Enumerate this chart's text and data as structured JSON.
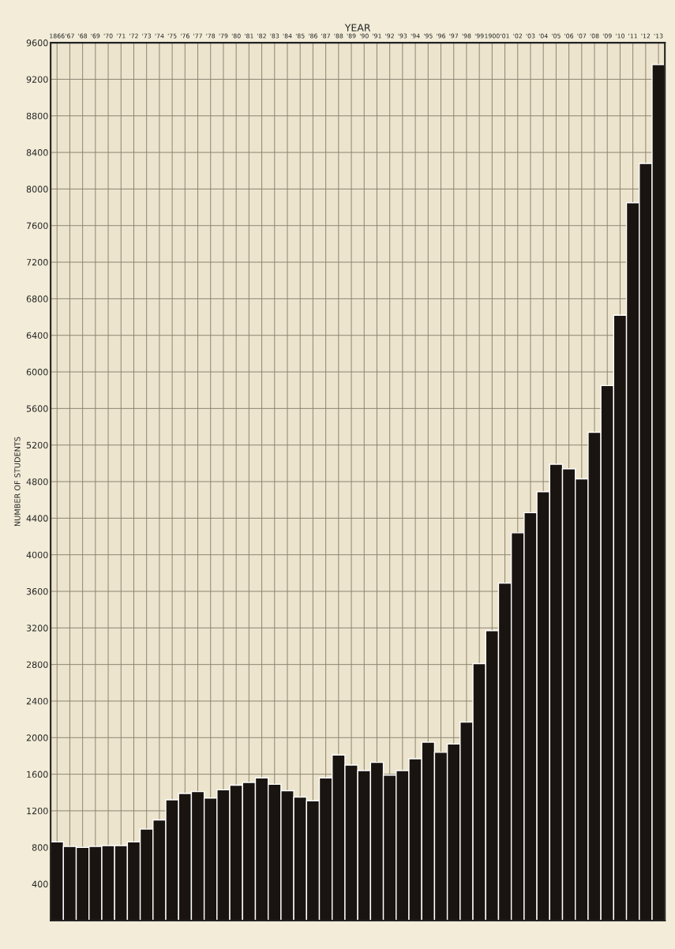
{
  "chart_data": {
    "type": "bar",
    "xlabel": "YEAR",
    "ylabel": "NUMBER OF STUDENTS",
    "categories": [
      "1866",
      "'67",
      "'68",
      "'69",
      "'70",
      "'71",
      "'72",
      "'73",
      "'74",
      "'75",
      "'76",
      "'77",
      "'78",
      "'79",
      "'80",
      "'81",
      "'82",
      "'83",
      "'84",
      "'85",
      "'86",
      "'87",
      "'88",
      "'89",
      "'90",
      "'91",
      "'92",
      "'93",
      "'94",
      "'95",
      "'96",
      "'97",
      "'98",
      "'99",
      "1900",
      "'01",
      "'02",
      "'03",
      "'04",
      "'05",
      "'06",
      "'07",
      "'08",
      "'09",
      "'10",
      "'11",
      "'12",
      "'13"
    ],
    "values": [
      860,
      810,
      800,
      810,
      820,
      820,
      860,
      1000,
      1100,
      1320,
      1390,
      1410,
      1340,
      1430,
      1480,
      1510,
      1560,
      1490,
      1420,
      1350,
      1310,
      1560,
      1810,
      1700,
      1640,
      1730,
      1590,
      1640,
      1770,
      1950,
      1840,
      1930,
      2170,
      2810,
      3170,
      3690,
      4240,
      4460,
      4690,
      4990,
      4940,
      4830,
      5340,
      5850,
      6620,
      7850,
      8280,
      9360
    ],
    "color": "#1a1410",
    "ylim": [
      0,
      9600
    ],
    "yticks": [
      400,
      800,
      1200,
      1600,
      2000,
      2400,
      2800,
      3200,
      3600,
      4000,
      4400,
      4800,
      5200,
      5600,
      6000,
      6400,
      6800,
      7200,
      7600,
      8000,
      8400,
      8800,
      9200,
      9600
    ],
    "grid": true
  }
}
